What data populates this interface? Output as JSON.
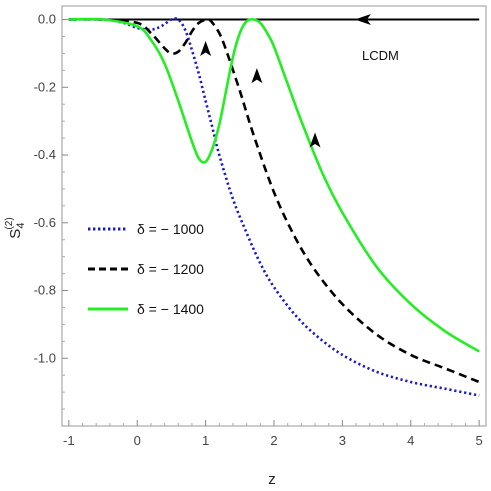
{
  "chart_data": {
    "type": "line",
    "title": "",
    "xlabel": "z",
    "ylabel": "S",
    "ylabel_superscript": "(2)",
    "ylabel_subscript": "4",
    "xlim": [
      -1.1,
      5.1
    ],
    "ylim": [
      -1.2,
      0.04
    ],
    "x_ticks": [
      -1,
      0,
      1,
      2,
      3,
      4,
      5
    ],
    "x_tick_labels": [
      "-1",
      "0",
      "1",
      "2",
      "3",
      "4",
      "5"
    ],
    "y_ticks": [
      0.0,
      -0.2,
      -0.4,
      -0.6,
      -0.8,
      -1.0
    ],
    "y_tick_labels": [
      "0.0",
      "-0.2",
      "-0.4",
      "-0.6",
      "-0.8",
      "-1.0"
    ],
    "grid": false,
    "legend_position": "middle-left",
    "annotation": "LCDM",
    "series": [
      {
        "name": "LCDM",
        "color": "#000000",
        "style": "solid",
        "x": [
          -1.0,
          0.0,
          1.0,
          2.0,
          3.0,
          4.0,
          5.0
        ],
        "y": [
          0.0,
          0.0,
          0.0,
          0.0,
          0.0,
          0.0,
          0.0
        ]
      },
      {
        "name": "δ = − 1000",
        "color": "#1a1acc",
        "style": "dotted",
        "x": [
          -1.0,
          -0.5,
          -0.2,
          0.0,
          0.2,
          0.35,
          0.5,
          0.6,
          0.7,
          0.8,
          0.9,
          1.0,
          1.1,
          1.2,
          1.4,
          1.6,
          1.8,
          2.0,
          2.3,
          2.6,
          3.0,
          3.5,
          4.0,
          4.5,
          5.0
        ],
        "y": [
          0.0,
          0.0,
          -0.01,
          -0.025,
          -0.03,
          -0.02,
          0.0,
          0.0,
          -0.03,
          -0.09,
          -0.16,
          -0.24,
          -0.32,
          -0.4,
          -0.53,
          -0.63,
          -0.72,
          -0.79,
          -0.87,
          -0.93,
          -0.99,
          -1.04,
          -1.07,
          -1.09,
          -1.11
        ]
      },
      {
        "name": "δ = − 1200",
        "color": "#000000",
        "style": "dashed",
        "x": [
          -1.0,
          -0.5,
          0.0,
          0.2,
          0.4,
          0.5,
          0.6,
          0.7,
          0.8,
          0.9,
          1.0,
          1.05,
          1.1,
          1.2,
          1.3,
          1.5,
          1.7,
          2.0,
          2.3,
          2.6,
          3.0,
          3.5,
          4.0,
          4.5,
          5.0
        ],
        "y": [
          0.0,
          0.0,
          -0.01,
          -0.04,
          -0.085,
          -0.1,
          -0.095,
          -0.07,
          -0.035,
          -0.01,
          0.0,
          0.0,
          -0.01,
          -0.04,
          -0.09,
          -0.21,
          -0.34,
          -0.51,
          -0.64,
          -0.74,
          -0.84,
          -0.93,
          -0.99,
          -1.03,
          -1.07
        ]
      },
      {
        "name": "δ = − 1400",
        "color": "#22ee22",
        "style": "solid",
        "x": [
          -1.0,
          -0.5,
          0.0,
          0.2,
          0.4,
          0.6,
          0.8,
          0.9,
          1.0,
          1.1,
          1.2,
          1.3,
          1.4,
          1.5,
          1.6,
          1.7,
          1.8,
          1.9,
          2.0,
          2.2,
          2.4,
          2.7,
          3.0,
          3.5,
          4.0,
          4.5,
          5.0
        ],
        "y": [
          0.0,
          0.0,
          -0.02,
          -0.06,
          -0.13,
          -0.24,
          -0.36,
          -0.41,
          -0.42,
          -0.38,
          -0.31,
          -0.21,
          -0.11,
          -0.04,
          -0.005,
          0.0,
          -0.01,
          -0.04,
          -0.08,
          -0.19,
          -0.3,
          -0.45,
          -0.57,
          -0.73,
          -0.84,
          -0.92,
          -0.98
        ]
      }
    ],
    "arrows": [
      {
        "series": "LCDM",
        "x": 3.3,
        "y": 0.0,
        "direction": "left"
      },
      {
        "series": "δ = − 1000",
        "x": 1.0,
        "y": -0.09,
        "direction": "up"
      },
      {
        "series": "δ = − 1200",
        "x": 1.75,
        "y": -0.17,
        "direction": "up"
      },
      {
        "series": "δ = − 1400",
        "x": 2.6,
        "y": -0.36,
        "direction": "up"
      }
    ]
  }
}
